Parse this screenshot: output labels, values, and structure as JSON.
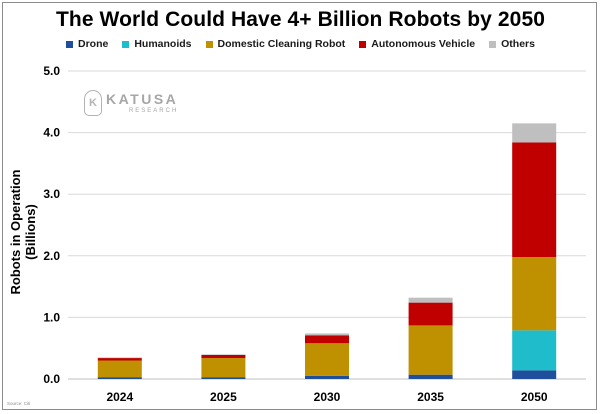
{
  "chart_data": {
    "type": "bar",
    "stacked": true,
    "title": "The World Could Have 4+ Billion Robots by 2050",
    "xlabel": "",
    "ylabel": "Robots in Operation (Billions)",
    "ylim": [
      0,
      5
    ],
    "yticks": [
      "0.0",
      "1.0",
      "2.0",
      "3.0",
      "4.0",
      "5.0"
    ],
    "grid": true,
    "legend_position": "top",
    "categories": [
      "2024",
      "2025",
      "2030",
      "2035",
      "2050"
    ],
    "series": [
      {
        "name": "Drone",
        "color": "#1f4e9c",
        "values": [
          0.03,
          0.03,
          0.05,
          0.07,
          0.14
        ]
      },
      {
        "name": "Humanoids",
        "color": "#1fbccb",
        "values": [
          0.0,
          0.0,
          0.0,
          0.0,
          0.65
        ]
      },
      {
        "name": "Domestic Cleaning Robot",
        "color": "#bf9000",
        "values": [
          0.27,
          0.31,
          0.53,
          0.8,
          1.19
        ]
      },
      {
        "name": "Autonomous Vehicle",
        "color": "#c00000",
        "values": [
          0.04,
          0.05,
          0.13,
          0.37,
          1.86
        ]
      },
      {
        "name": "Others",
        "color": "#bfbfbf",
        "values": [
          0.01,
          0.01,
          0.03,
          0.08,
          0.31
        ]
      }
    ]
  },
  "logo": {
    "name": "KATUSA",
    "sub": "RESEARCH",
    "mark": "K"
  },
  "source": "Source: Citi"
}
